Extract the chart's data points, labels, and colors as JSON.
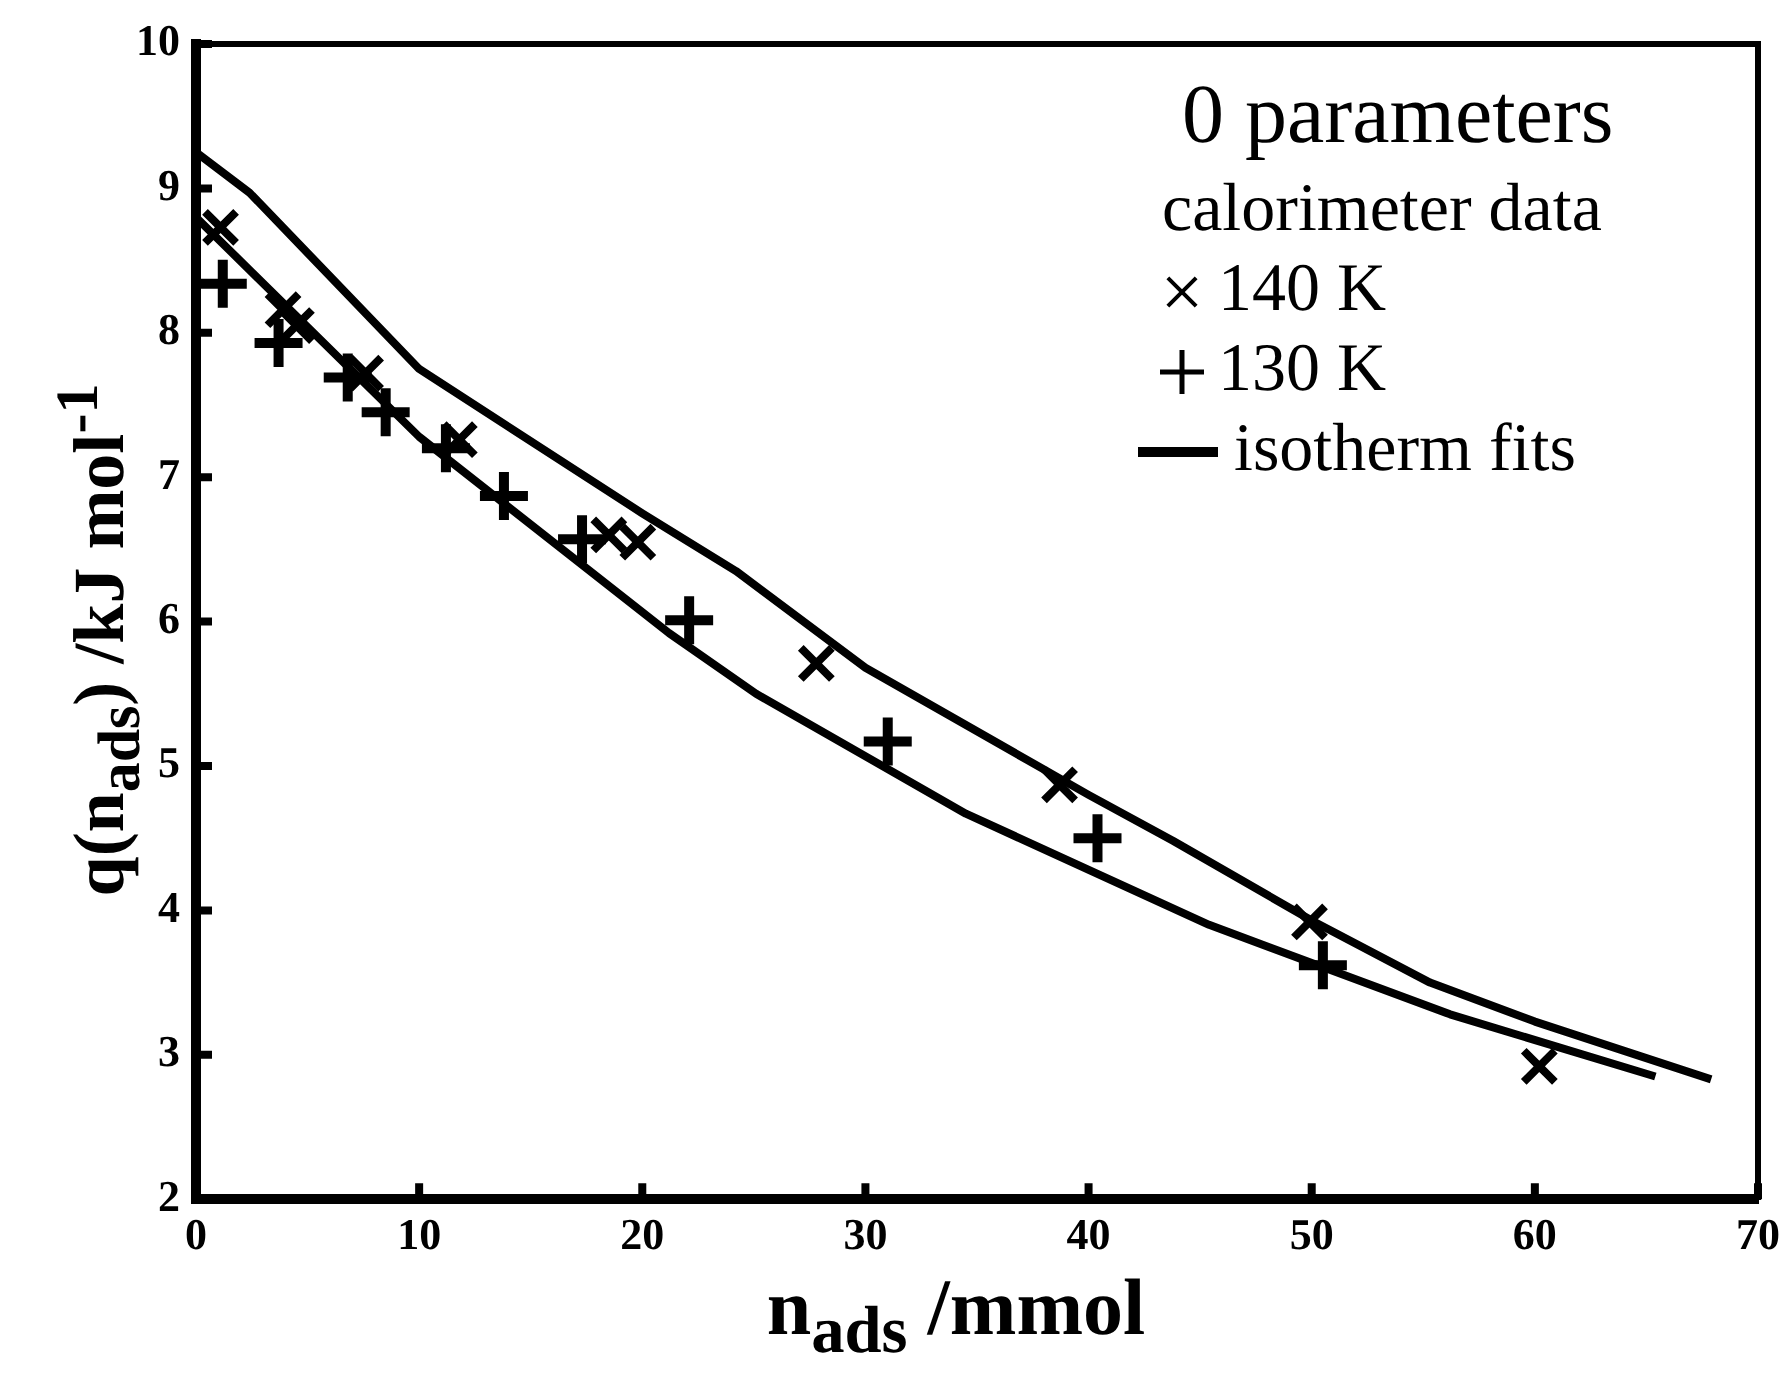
{
  "chart_data": {
    "type": "scatter",
    "xlabel": "n$_{ads}$ /mmol",
    "ylabel": "q(n$_{ads}$)  /kJ mol$^{-1}$",
    "legend_title": "calorimeter data",
    "annotations": [
      "0 parameters"
    ],
    "xlim": [
      0,
      70
    ],
    "xticks": [
      0,
      10,
      20,
      30,
      40,
      50,
      60,
      70
    ],
    "ylim": [
      2,
      10
    ],
    "yticks": [
      2,
      3,
      4,
      5,
      6,
      7,
      8,
      9,
      10
    ],
    "grid": false,
    "legend": "top right",
    "series": [
      {
        "name": "140 K",
        "type": "scatter",
        "marker": "x",
        "color": "#000000",
        "x": [
          1.1,
          3.9,
          4.5,
          7.6,
          11.8,
          18.5,
          19.8,
          27.8,
          38.7,
          49.9,
          60.2
        ],
        "values": [
          8.73,
          8.16,
          8.05,
          7.72,
          7.26,
          6.6,
          6.55,
          5.71,
          4.87,
          3.92,
          2.92
        ]
      },
      {
        "name": "130 K",
        "type": "scatter",
        "marker": "cross",
        "color": "#000000",
        "x": [
          1.2,
          3.7,
          6.8,
          8.5,
          11.2,
          13.8,
          17.3,
          22.1,
          31,
          40.4,
          50.5
        ],
        "values": [
          8.34,
          7.93,
          7.69,
          7.45,
          7.2,
          6.87,
          6.57,
          6.01,
          5.17,
          4.5,
          3.62
        ]
      },
      {
        "name": "isotherm fits",
        "type": "line",
        "marker": "none",
        "color": "#000000",
        "x": [
          0,
          2.4,
          10,
          20,
          24.2,
          30,
          40,
          43.8,
          50,
          55.3,
          60,
          67.9
        ],
        "values": [
          9.25,
          8.97,
          7.75,
          6.75,
          6.35,
          5.68,
          4.8,
          4.48,
          3.93,
          3.5,
          3.23,
          2.83
        ]
      },
      {
        "type": "line",
        "marker": "none",
        "color": "#000000",
        "x": [
          0,
          10,
          21.2,
          25.1,
          34.5,
          45.4,
          56.2,
          65.4
        ],
        "values": [
          8.8,
          7.28,
          5.92,
          5.5,
          4.67,
          3.9,
          3.28,
          2.85
        ]
      }
    ]
  }
}
